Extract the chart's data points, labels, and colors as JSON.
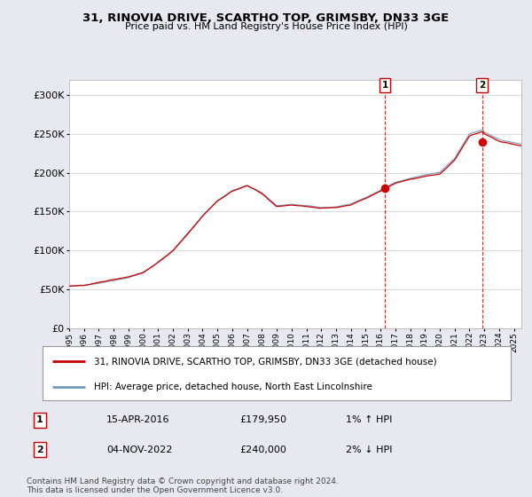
{
  "title": "31, RINOVIA DRIVE, SCARTHO TOP, GRIMSBY, DN33 3GE",
  "subtitle": "Price paid vs. HM Land Registry's House Price Index (HPI)",
  "ylim": [
    0,
    320000
  ],
  "yticks": [
    0,
    50000,
    100000,
    150000,
    200000,
    250000,
    300000
  ],
  "ytick_labels": [
    "£0",
    "£50K",
    "£100K",
    "£150K",
    "£200K",
    "£250K",
    "£300K"
  ],
  "hpi_color": "#7799bb",
  "price_color": "#cc0000",
  "sale1": {
    "date": "15-APR-2016",
    "price": 179950,
    "hpi_diff": "1% ↑ HPI"
  },
  "sale2": {
    "date": "04-NOV-2022",
    "price": 240000,
    "hpi_diff": "2% ↓ HPI"
  },
  "legend1": "31, RINOVIA DRIVE, SCARTHO TOP, GRIMSBY, DN33 3GE (detached house)",
  "legend2": "HPI: Average price, detached house, North East Lincolnshire",
  "footnote": "Contains HM Land Registry data © Crown copyright and database right 2024.\nThis data is licensed under the Open Government Licence v3.0.",
  "background_color": "#e8e8f0",
  "plot_bg": "#ffffff",
  "grid_color": "#cccccc",
  "dashed_line_color": "#cc0000",
  "sale1_year": 2016.29,
  "sale2_year": 2022.84
}
